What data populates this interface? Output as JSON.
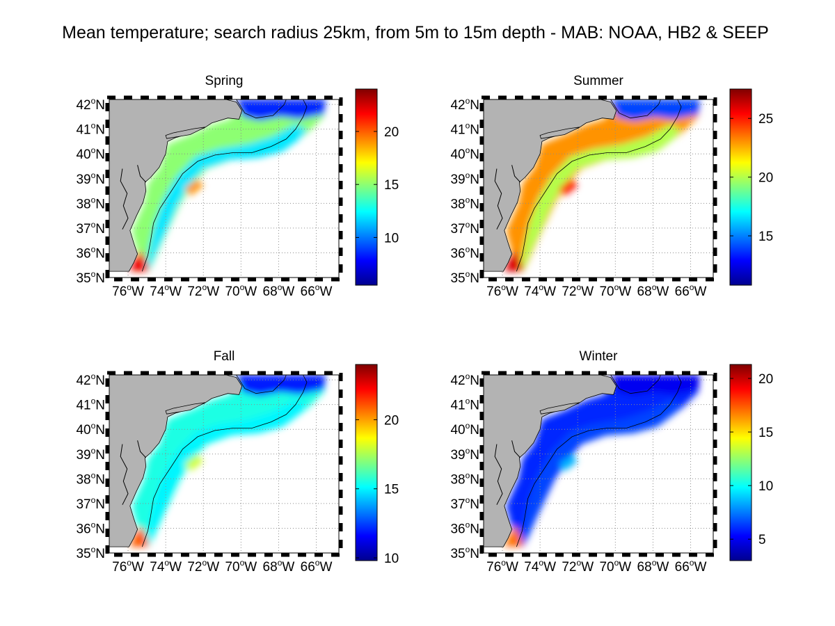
{
  "figure": {
    "title": "Mean temperature; search radius 25km, from 5m to 15m depth - MAB: NOAA, HB2 & SEEP"
  },
  "axes": {
    "lon_ticks": [
      "76",
      "74",
      "72",
      "70",
      "68",
      "66"
    ],
    "lat_ticks": [
      "42",
      "41",
      "40",
      "39",
      "38",
      "37",
      "36",
      "35"
    ],
    "degree_symbol": "o",
    "lon_hemisphere": "W",
    "lat_hemisphere": "N"
  },
  "colors": {
    "land": "#b3b3b3",
    "ocean_background": "#ffffff",
    "coastline": "#000000",
    "isobath": "#000000",
    "grid": "#8c8c8c"
  },
  "panels": [
    {
      "title": "Spring",
      "colorbar_ticks": [
        "10",
        "15",
        "20"
      ],
      "cmin": 5.5,
      "cmax": 24.0,
      "tick_values": [
        10,
        15,
        20
      ],
      "temps": {
        "inner_shelf": 15.0,
        "outer_shelf": 12.0,
        "south": 22.0,
        "gulf_of_maine": 8.5,
        "offshore_warm": 19.0
      }
    },
    {
      "title": "Summer",
      "colorbar_ticks": [
        "15",
        "20",
        "25"
      ],
      "cmin": 10.8,
      "cmax": 27.5,
      "tick_values": [
        15,
        20,
        25
      ],
      "temps": {
        "inner_shelf": 23.0,
        "outer_shelf": 20.0,
        "south": 26.0,
        "gulf_of_maine": 14.0,
        "offshore_warm": 25.0
      }
    },
    {
      "title": "Fall",
      "colorbar_ticks": [
        "10",
        "15",
        "20"
      ],
      "cmin": 9.8,
      "cmax": 24.0,
      "tick_values": [
        10,
        15,
        20
      ],
      "temps": {
        "inner_shelf": 15.5,
        "outer_shelf": 15.0,
        "south": 21.0,
        "gulf_of_maine": 12.0,
        "offshore_warm": 18.0
      }
    },
    {
      "title": "Winter",
      "colorbar_ticks": [
        "5",
        "10",
        "15",
        "20"
      ],
      "cmin": 3.0,
      "cmax": 21.3,
      "tick_values": [
        5,
        10,
        15,
        20
      ],
      "temps": {
        "inner_shelf": 6.0,
        "outer_shelf": 6.5,
        "south": 17.0,
        "gulf_of_maine": 5.0,
        "offshore_warm": 8.5
      }
    }
  ]
}
